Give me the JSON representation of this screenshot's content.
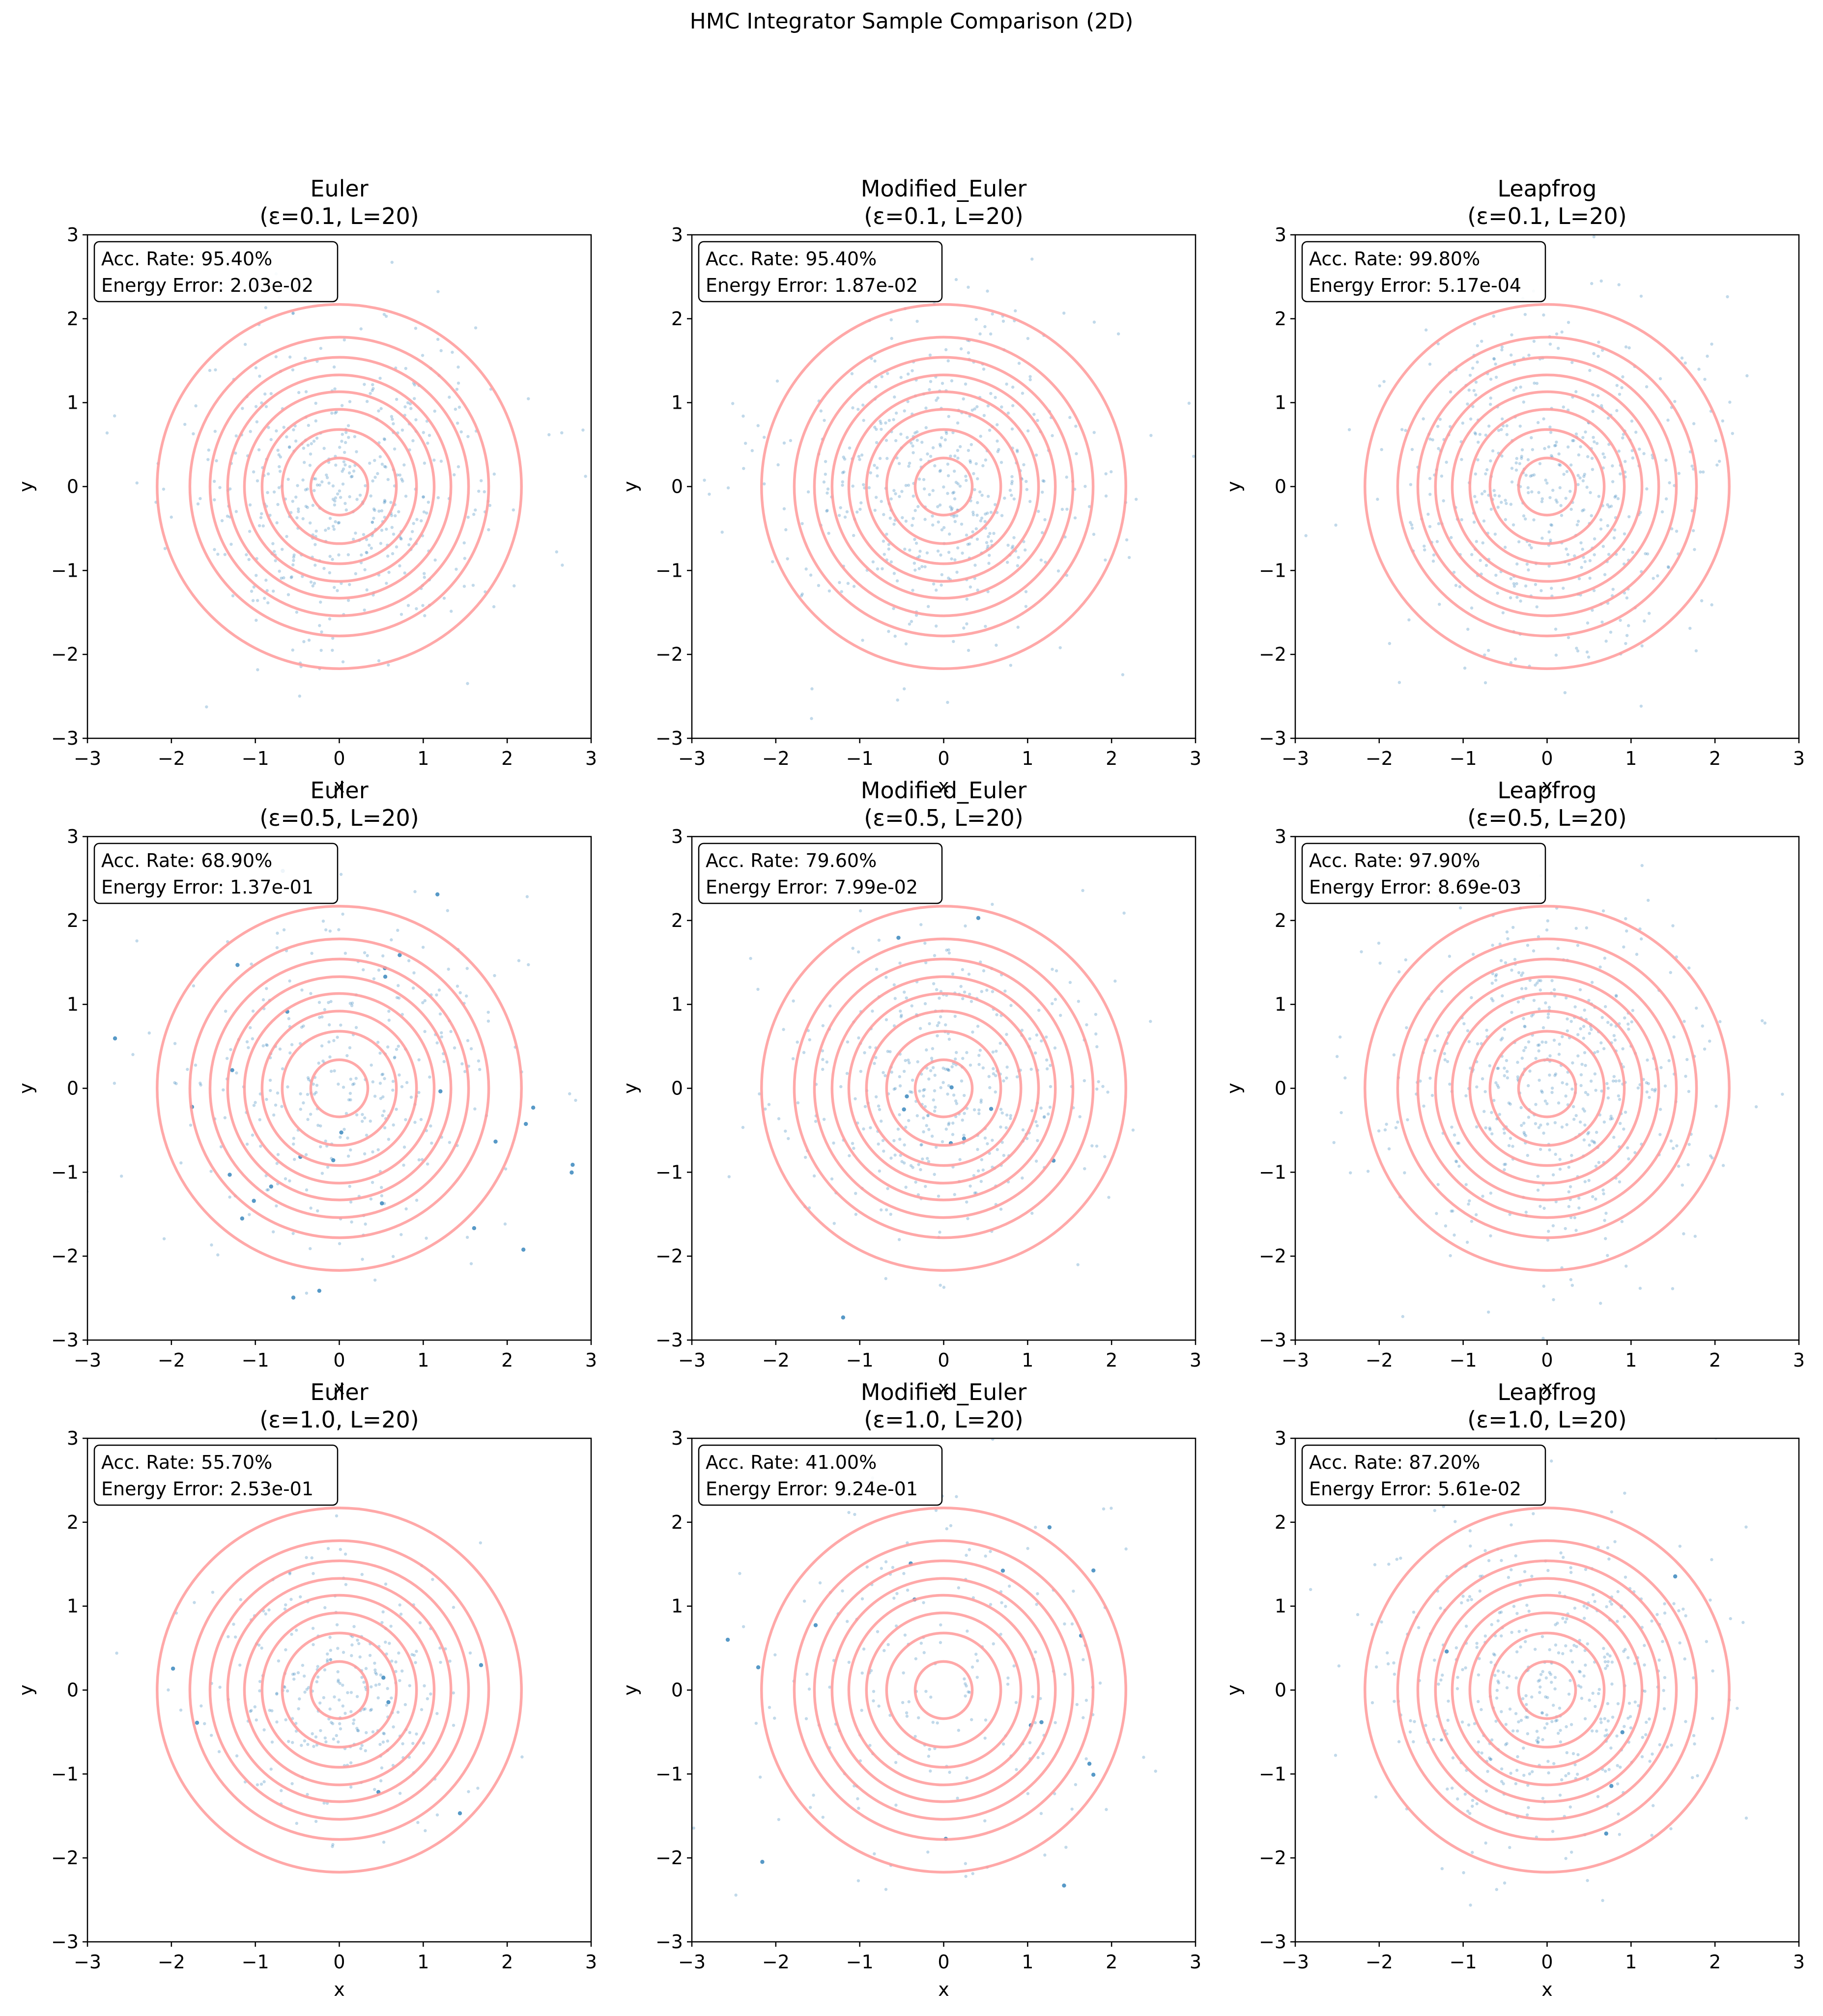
{
  "figure_title": "HMC Integrator Sample Comparison (2D)",
  "chart_data": [
    {
      "type": "scatter",
      "method": "Euler",
      "title_line1": "Euler",
      "title_line2": "(ε=0.1, L=20)",
      "epsilon": 0.1,
      "L": 20,
      "stats": [
        "Acc. Rate: 95.40%",
        "Energy Error: 2.03e-02"
      ],
      "xlabel": "x",
      "ylabel": "y",
      "xlim": [
        -3,
        3
      ],
      "ylim": [
        -3,
        3
      ],
      "xticks": [
        -3,
        -2,
        -1,
        0,
        1,
        2,
        3
      ],
      "yticks": [
        -3,
        -2,
        -1,
        0,
        1,
        2,
        3
      ],
      "contour_radii": [
        0.34,
        0.68,
        0.92,
        1.13,
        1.33,
        1.54,
        1.78,
        2.17
      ],
      "samples": {
        "count": 500,
        "spread": 0.95,
        "outlier_fraction": 0.0,
        "seed": 11
      }
    },
    {
      "type": "scatter",
      "method": "Modified_Euler",
      "title_line1": "Modified_Euler",
      "title_line2": "(ε=0.1, L=20)",
      "epsilon": 0.1,
      "L": 20,
      "stats": [
        "Acc. Rate: 95.40%",
        "Energy Error: 1.87e-02"
      ],
      "xlabel": "x",
      "ylabel": "y",
      "xlim": [
        -3,
        3
      ],
      "ylim": [
        -3,
        3
      ],
      "xticks": [
        -3,
        -2,
        -1,
        0,
        1,
        2,
        3
      ],
      "yticks": [
        -3,
        -2,
        -1,
        0,
        1,
        2,
        3
      ],
      "contour_radii": [
        0.34,
        0.68,
        0.92,
        1.13,
        1.33,
        1.54,
        1.78,
        2.17
      ],
      "samples": {
        "count": 500,
        "spread": 0.95,
        "outlier_fraction": 0.0,
        "seed": 23
      }
    },
    {
      "type": "scatter",
      "method": "Leapfrog",
      "title_line1": "Leapfrog",
      "title_line2": "(ε=0.1, L=20)",
      "epsilon": 0.1,
      "L": 20,
      "stats": [
        "Acc. Rate: 99.80%",
        "Energy Error: 5.17e-04"
      ],
      "xlabel": "x",
      "ylabel": "y",
      "xlim": [
        -3,
        3
      ],
      "ylim": [
        -3,
        3
      ],
      "xticks": [
        -3,
        -2,
        -1,
        0,
        1,
        2,
        3
      ],
      "yticks": [
        -3,
        -2,
        -1,
        0,
        1,
        2,
        3
      ],
      "contour_radii": [
        0.34,
        0.68,
        0.92,
        1.13,
        1.33,
        1.54,
        1.78,
        2.17
      ],
      "samples": {
        "count": 500,
        "spread": 0.98,
        "outlier_fraction": 0.0,
        "seed": 37
      }
    },
    {
      "type": "scatter",
      "method": "Euler",
      "title_line1": "Euler",
      "title_line2": "(ε=0.5, L=20)",
      "epsilon": 0.5,
      "L": 20,
      "stats": [
        "Acc. Rate: 68.90%",
        "Energy Error: 1.37e-01"
      ],
      "xlabel": "x",
      "ylabel": "y",
      "xlim": [
        -3,
        3
      ],
      "ylim": [
        -3,
        3
      ],
      "xticks": [
        -3,
        -2,
        -1,
        0,
        1,
        2,
        3
      ],
      "yticks": [
        -3,
        -2,
        -1,
        0,
        1,
        2,
        3
      ],
      "contour_radii": [
        0.34,
        0.68,
        0.92,
        1.13,
        1.33,
        1.54,
        1.78,
        2.17
      ],
      "samples": {
        "count": 360,
        "spread": 1.05,
        "outlier_fraction": 0.08,
        "seed": 41
      }
    },
    {
      "type": "scatter",
      "method": "Modified_Euler",
      "title_line1": "Modified_Euler",
      "title_line2": "(ε=0.5, L=20)",
      "epsilon": 0.5,
      "L": 20,
      "stats": [
        "Acc. Rate: 79.60%",
        "Energy Error: 7.99e-02"
      ],
      "xlabel": "x",
      "ylabel": "y",
      "xlim": [
        -3,
        3
      ],
      "ylim": [
        -3,
        3
      ],
      "xticks": [
        -3,
        -2,
        -1,
        0,
        1,
        2,
        3
      ],
      "yticks": [
        -3,
        -2,
        -1,
        0,
        1,
        2,
        3
      ],
      "contour_radii": [
        0.34,
        0.68,
        0.92,
        1.13,
        1.33,
        1.54,
        1.78,
        2.17
      ],
      "samples": {
        "count": 420,
        "spread": 0.9,
        "outlier_fraction": 0.04,
        "seed": 53
      }
    },
    {
      "type": "scatter",
      "method": "Leapfrog",
      "title_line1": "Leapfrog",
      "title_line2": "(ε=0.5, L=20)",
      "epsilon": 0.5,
      "L": 20,
      "stats": [
        "Acc. Rate: 97.90%",
        "Energy Error: 8.69e-03"
      ],
      "xlabel": "x",
      "ylabel": "y",
      "xlim": [
        -3,
        3
      ],
      "ylim": [
        -3,
        3
      ],
      "xticks": [
        -3,
        -2,
        -1,
        0,
        1,
        2,
        3
      ],
      "yticks": [
        -3,
        -2,
        -1,
        0,
        1,
        2,
        3
      ],
      "contour_radii": [
        0.34,
        0.68,
        0.92,
        1.13,
        1.33,
        1.54,
        1.78,
        2.17
      ],
      "samples": {
        "count": 500,
        "spread": 0.98,
        "outlier_fraction": 0.0,
        "seed": 67
      }
    },
    {
      "type": "scatter",
      "method": "Euler",
      "title_line1": "Euler",
      "title_line2": "(ε=1.0, L=20)",
      "epsilon": 1.0,
      "L": 20,
      "stats": [
        "Acc. Rate: 55.70%",
        "Energy Error: 2.53e-01"
      ],
      "xlabel": "x",
      "ylabel": "y",
      "xlim": [
        -3,
        3
      ],
      "ylim": [
        -3,
        3
      ],
      "xticks": [
        -3,
        -2,
        -1,
        0,
        1,
        2,
        3
      ],
      "yticks": [
        -3,
        -2,
        -1,
        0,
        1,
        2,
        3
      ],
      "contour_radii": [
        0.34,
        0.68,
        0.92,
        1.13,
        1.33,
        1.54,
        1.78,
        2.17
      ],
      "samples": {
        "count": 300,
        "spread": 0.75,
        "outlier_fraction": 0.02,
        "seed": 71
      }
    },
    {
      "type": "scatter",
      "method": "Modified_Euler",
      "title_line1": "Modified_Euler",
      "title_line2": "(ε=1.0, L=20)",
      "epsilon": 1.0,
      "L": 20,
      "stats": [
        "Acc. Rate: 41.00%",
        "Energy Error: 9.24e-01"
      ],
      "xlabel": "x",
      "ylabel": "y",
      "xlim": [
        -3,
        3
      ],
      "ylim": [
        -3,
        3
      ],
      "xticks": [
        -3,
        -2,
        -1,
        0,
        1,
        2,
        3
      ],
      "yticks": [
        -3,
        -2,
        -1,
        0,
        1,
        2,
        3
      ],
      "contour_radii": [
        0.34,
        0.68,
        0.92,
        1.13,
        1.33,
        1.54,
        1.78,
        2.17
      ],
      "samples": {
        "count": 230,
        "spread": 1.15,
        "outlier_fraction": 0.12,
        "seed": 83
      }
    },
    {
      "type": "scatter",
      "method": "Leapfrog",
      "title_line1": "Leapfrog",
      "title_line2": "(ε=1.0, L=20)",
      "epsilon": 1.0,
      "L": 20,
      "stats": [
        "Acc. Rate: 87.20%",
        "Energy Error: 5.61e-02"
      ],
      "xlabel": "x",
      "ylabel": "y",
      "xlim": [
        -3,
        3
      ],
      "ylim": [
        -3,
        3
      ],
      "xticks": [
        -3,
        -2,
        -1,
        0,
        1,
        2,
        3
      ],
      "yticks": [
        -3,
        -2,
        -1,
        0,
        1,
        2,
        3
      ],
      "contour_radii": [
        0.34,
        0.68,
        0.92,
        1.13,
        1.33,
        1.54,
        1.78,
        2.17
      ],
      "samples": {
        "count": 460,
        "spread": 0.98,
        "outlier_fraction": 0.01,
        "seed": 97
      }
    }
  ],
  "colors": {
    "contour": "#ff9999",
    "samples": "#1f77b4",
    "axes": "#000000",
    "background": "#ffffff"
  }
}
